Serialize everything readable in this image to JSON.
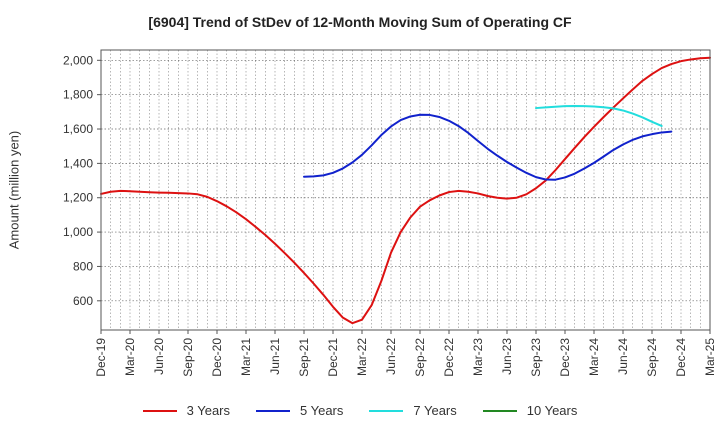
{
  "chart_data": {
    "type": "line",
    "title": "[6904]  Trend of StDev of 12-Month Moving Sum of Operating CF",
    "xlabel": "",
    "ylabel": "Amount (million yen)",
    "ylim": [
      430,
      2060
    ],
    "yticks": [
      600,
      800,
      1000,
      1200,
      1400,
      1600,
      1800,
      2000
    ],
    "ytick_labels": [
      "600",
      "800",
      "1,000",
      "1,200",
      "1,400",
      "1,600",
      "1,800",
      "2,000"
    ],
    "x_start": "Dec-19",
    "x_tick_step_months": 3,
    "xtick_labels": [
      "Dec-19",
      "Mar-20",
      "Jun-20",
      "Sep-20",
      "Dec-20",
      "Mar-21",
      "Jun-21",
      "Sep-21",
      "Dec-21",
      "Mar-22",
      "Jun-22",
      "Sep-22",
      "Dec-22",
      "Mar-23",
      "Jun-23",
      "Sep-23",
      "Dec-23",
      "Mar-24",
      "Jun-24",
      "Sep-24",
      "Dec-24",
      "Mar-25"
    ],
    "x_last_tick": "Mar-25",
    "grid": true,
    "legend_position": "bottom",
    "series": [
      {
        "name": "3 Years",
        "color": "#dd1111",
        "start": "Dec-19",
        "values": [
          1222,
          1235,
          1240,
          1238,
          1235,
          1232,
          1230,
          1229,
          1227,
          1225,
          1220,
          1205,
          1180,
          1150,
          1115,
          1075,
          1030,
          983,
          932,
          878,
          822,
          762,
          700,
          635,
          565,
          503,
          470,
          490,
          575,
          715,
          880,
          1000,
          1085,
          1148,
          1185,
          1213,
          1233,
          1240,
          1235,
          1225,
          1210,
          1200,
          1195,
          1200,
          1220,
          1255,
          1300,
          1360,
          1425,
          1490,
          1553,
          1613,
          1670,
          1725,
          1778,
          1830,
          1880,
          1920,
          1955,
          1978,
          1995,
          2005,
          2012,
          2015
        ]
      },
      {
        "name": "5 Years",
        "color": "#1122cc",
        "start": "Sep-21",
        "values": [
          1322,
          1324,
          1330,
          1345,
          1370,
          1405,
          1450,
          1505,
          1565,
          1615,
          1652,
          1673,
          1683,
          1682,
          1670,
          1648,
          1617,
          1577,
          1530,
          1485,
          1445,
          1408,
          1375,
          1345,
          1320,
          1306,
          1305,
          1318,
          1340,
          1370,
          1403,
          1440,
          1478,
          1510,
          1537,
          1557,
          1570,
          1580,
          1585
        ]
      },
      {
        "name": "7 Years",
        "color": "#22dddd",
        "start": "Sep-23",
        "values": [
          1722,
          1726,
          1730,
          1733,
          1734,
          1733,
          1731,
          1727,
          1720,
          1708,
          1690,
          1668,
          1642,
          1618
        ]
      },
      {
        "name": "10 Years",
        "color": "#228822",
        "start": "Sep-24",
        "values": []
      }
    ]
  }
}
